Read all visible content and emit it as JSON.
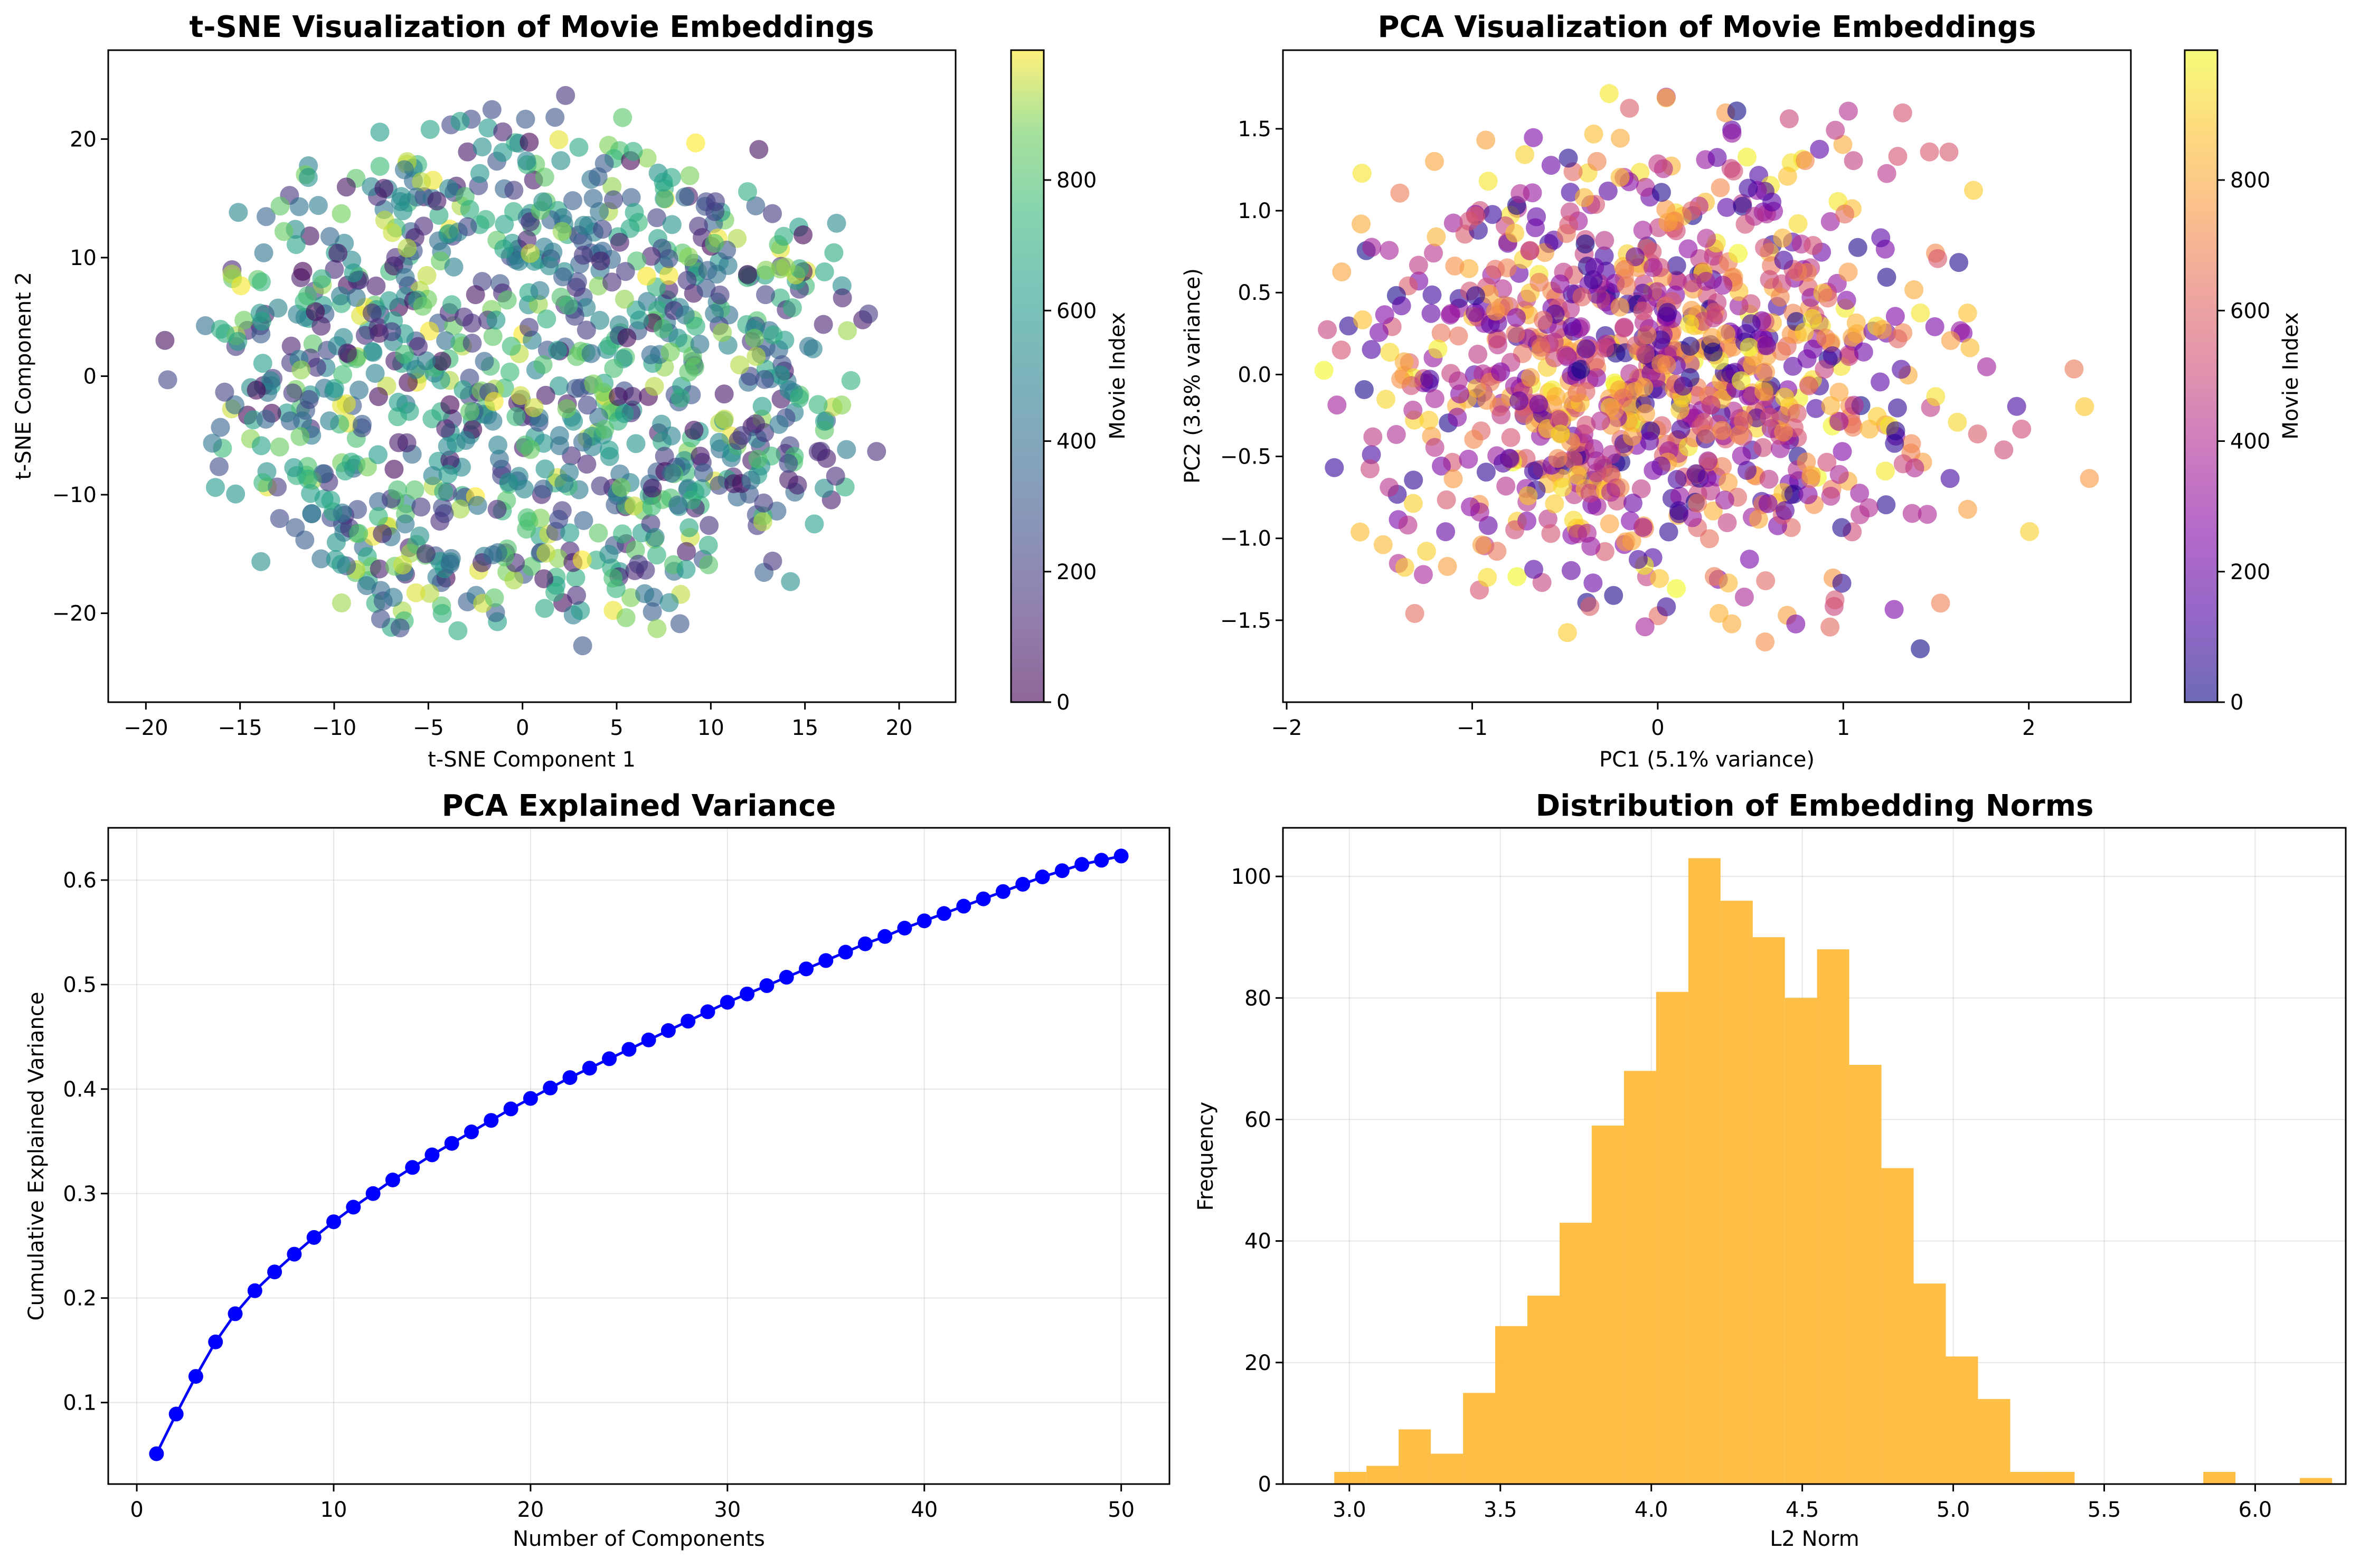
{
  "figure": {
    "background": "#ffffff"
  },
  "chart_data": [
    {
      "type": "scatter",
      "title": "t-SNE Visualization of Movie Embeddings",
      "xlabel": "t-SNE Component 1",
      "ylabel": "t-SNE Component 2",
      "xlim": [
        -22,
        23
      ],
      "ylim": [
        -27.5,
        27.5
      ],
      "xticks": [
        -20,
        -15,
        -10,
        -5,
        0,
        5,
        10,
        15,
        20
      ],
      "yticks": [
        -20,
        -10,
        0,
        10,
        20
      ],
      "grid": false,
      "n_points": 1000,
      "point_alpha": 0.6,
      "colormap": "viridis",
      "colorbar": {
        "label": "Movie Index",
        "range": [
          0,
          999
        ],
        "ticks": [
          0,
          200,
          400,
          600,
          800
        ]
      },
      "point_cloud": {
        "x_center": 0.5,
        "y_center": 0,
        "x_spread": 20,
        "y_spread": 24.5
      }
    },
    {
      "type": "scatter",
      "title": "PCA Visualization of Movie Embeddings",
      "xlabel": "PC1 (5.1% variance)",
      "ylabel": "PC2 (3.8% variance)",
      "xlim": [
        -2.02,
        2.55
      ],
      "ylim": [
        -2.0,
        1.98
      ],
      "xticks": [
        -2,
        -1,
        0,
        1,
        2
      ],
      "yticks": [
        -1.5,
        -1.0,
        -0.5,
        0.0,
        0.5,
        1.0,
        1.5
      ],
      "grid": false,
      "n_points": 1000,
      "point_alpha": 0.6,
      "colormap": "plasma",
      "colorbar": {
        "label": "Movie Index",
        "range": [
          0,
          999
        ],
        "ticks": [
          0,
          200,
          400,
          600,
          800
        ]
      },
      "point_cloud": {
        "x_center": 0.0,
        "y_center": 0.0,
        "x_sd": 0.75,
        "y_sd": 0.68,
        "x_min": -1.82,
        "x_max": 2.35,
        "y_min": -1.8,
        "y_max": 1.82
      }
    },
    {
      "type": "line",
      "title": "PCA Explained Variance",
      "xlabel": "Number of Components",
      "ylabel": "Cumulative Explained Variance",
      "xlim": [
        -1.45,
        52.45
      ],
      "ylim": [
        0.022,
        0.65
      ],
      "xticks": [
        0,
        10,
        20,
        30,
        40,
        50
      ],
      "yticks": [
        0.1,
        0.2,
        0.3,
        0.4,
        0.5,
        0.6
      ],
      "grid": true,
      "color": "#0000ff",
      "marker": "circle",
      "x": [
        1,
        2,
        3,
        4,
        5,
        6,
        7,
        8,
        9,
        10,
        11,
        12,
        13,
        14,
        15,
        16,
        17,
        18,
        19,
        20,
        21,
        22,
        23,
        24,
        25,
        26,
        27,
        28,
        29,
        30,
        31,
        32,
        33,
        34,
        35,
        36,
        37,
        38,
        39,
        40,
        41,
        42,
        43,
        44,
        45,
        46,
        47,
        48,
        49,
        50
      ],
      "y": [
        0.051,
        0.089,
        0.125,
        0.158,
        0.185,
        0.207,
        0.225,
        0.242,
        0.258,
        0.273,
        0.287,
        0.3,
        0.313,
        0.325,
        0.337,
        0.348,
        0.359,
        0.37,
        0.381,
        0.391,
        0.401,
        0.411,
        0.42,
        0.429,
        0.438,
        0.447,
        0.456,
        0.465,
        0.474,
        0.483,
        0.491,
        0.499,
        0.507,
        0.515,
        0.523,
        0.531,
        0.539,
        0.546,
        0.554,
        0.561,
        0.568,
        0.575,
        0.582,
        0.589,
        0.596,
        0.603,
        0.609,
        0.615,
        0.619,
        0.623
      ]
    },
    {
      "type": "bar",
      "subtype": "histogram",
      "title": "Distribution of Embedding Norms",
      "xlabel": "L2 Norm",
      "ylabel": "Frequency",
      "xlim": [
        2.78,
        6.3
      ],
      "ylim": [
        0,
        108
      ],
      "xticks": [
        3.0,
        3.5,
        4.0,
        4.5,
        5.0,
        5.5,
        6.0
      ],
      "yticks": [
        0,
        20,
        40,
        60,
        80,
        100
      ],
      "grid": true,
      "color": "#ffb732",
      "bin_width": 0.1066,
      "bin_start": 2.95,
      "counts": [
        2,
        3,
        9,
        5,
        15,
        26,
        31,
        43,
        59,
        68,
        81,
        103,
        96,
        90,
        80,
        88,
        69,
        52,
        33,
        21,
        14,
        2,
        2,
        0,
        0,
        0,
        0,
        2,
        0,
        0,
        1
      ]
    }
  ]
}
